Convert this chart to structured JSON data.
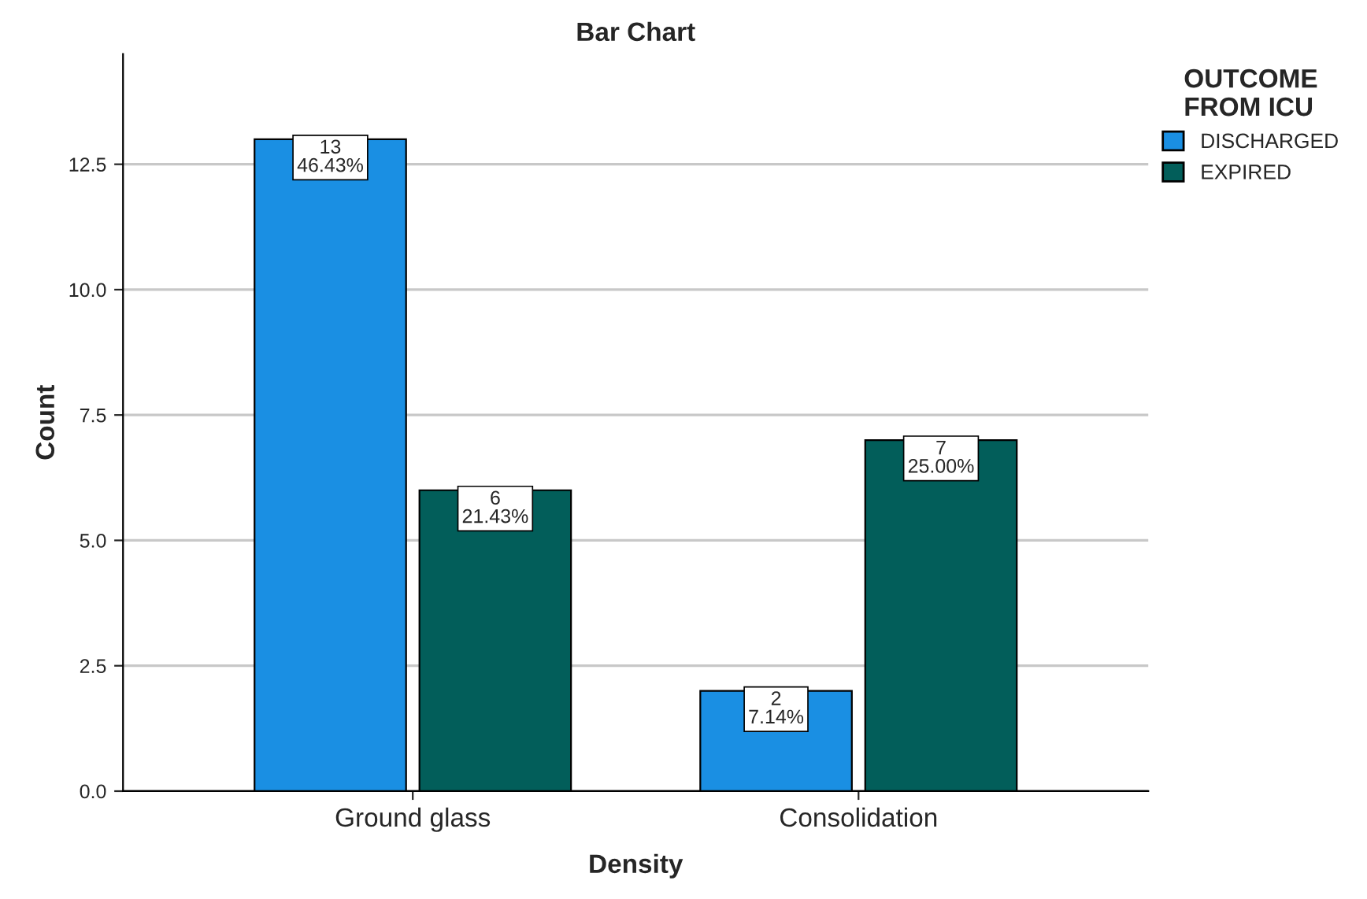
{
  "chart_data": {
    "type": "bar",
    "title": "Bar Chart",
    "xlabel": "Density",
    "ylabel": "Count",
    "legend_title": "OUTCOME\nFROM ICU",
    "categories": [
      "Ground glass",
      "Consolidation"
    ],
    "series": [
      {
        "name": "DISCHARGED",
        "color": "#1a8fe3",
        "values": [
          13,
          2
        ],
        "value_labels": [
          "13\n46.43%",
          "2\n7.14%"
        ]
      },
      {
        "name": "EXPIRED",
        "color": "#025e5a",
        "values": [
          6,
          7
        ],
        "value_labels": [
          "6\n21.43%",
          "7\n25.00%"
        ]
      }
    ],
    "ylim": [
      0,
      14.7
    ],
    "yticks": [
      {
        "value": 0,
        "label": "0.0"
      },
      {
        "value": 2.5,
        "label": "2.5"
      },
      {
        "value": 5,
        "label": "5.0"
      },
      {
        "value": 7.5,
        "label": "7.5"
      },
      {
        "value": 10,
        "label": "10.0"
      },
      {
        "value": 12.5,
        "label": "12.5"
      }
    ],
    "grid": "y",
    "legend": "top right"
  }
}
